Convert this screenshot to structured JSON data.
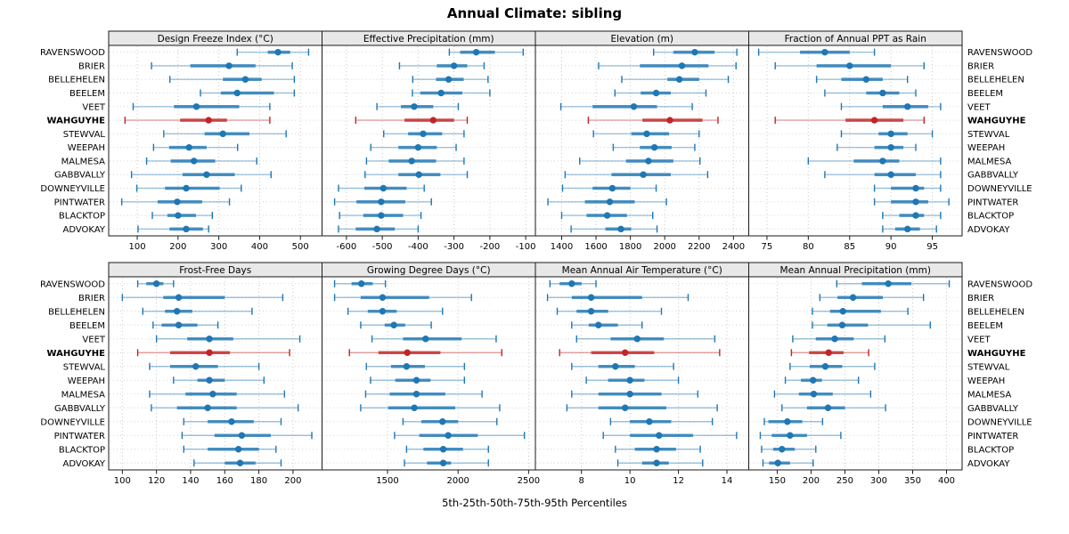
{
  "title": "Annual Climate: sibling",
  "caption": "5th-25th-50th-75th-95th Percentiles",
  "highlight_site": "WAHGUYHE",
  "colors": {
    "blue": "#1f77b4",
    "red": "#c22526",
    "strip_bg": "#e8e8e8",
    "panel_border": "#1a1a1a",
    "grid": "#c9c9c9",
    "text": "#000000"
  },
  "chart_data": {
    "type": "dot-interval",
    "percentiles": [
      5,
      25,
      50,
      75,
      95
    ],
    "grid": "dotted",
    "sites": [
      "RAVENSWOOD",
      "BRIER",
      "BELLEHELEN",
      "BEELEM",
      "VEET",
      "WAHGUYHE",
      "STEWVAL",
      "WEEPAH",
      "MALMESA",
      "GABBVALLY",
      "DOWNEYVILLE",
      "PINTWATER",
      "BLACKTOP",
      "ADVOKAY"
    ],
    "panels": [
      {
        "title": "Design Freeze Index (°C)",
        "row": 0,
        "col": 0,
        "xlim": [
          30,
          553
        ],
        "ticks": [
          100,
          200,
          300,
          400,
          500
        ],
        "values": [
          [
            345,
            420,
            445,
            475,
            520
          ],
          [
            135,
            230,
            325,
            390,
            480
          ],
          [
            180,
            310,
            365,
            405,
            485
          ],
          [
            255,
            305,
            345,
            435,
            485
          ],
          [
            90,
            190,
            245,
            350,
            425
          ],
          [
            70,
            205,
            275,
            320,
            425
          ],
          [
            165,
            265,
            310,
            375,
            465
          ],
          [
            140,
            178,
            227,
            270,
            346
          ],
          [
            123,
            182,
            239,
            291,
            393
          ],
          [
            86,
            211,
            270,
            339,
            428
          ],
          [
            99,
            168,
            220,
            302,
            355
          ],
          [
            62,
            150,
            198,
            259,
            326
          ],
          [
            137,
            174,
            200,
            244,
            284
          ],
          [
            102,
            179,
            220,
            261,
            275
          ]
        ]
      },
      {
        "title": "Effective Precipitation (mm)",
        "row": 0,
        "col": 1,
        "xlim": [
          -668,
          -73
        ],
        "ticks": [
          -600,
          -500,
          -400,
          -300,
          -200,
          -100
        ],
        "values": [
          [
            -313,
            -283,
            -238,
            -186,
            -107
          ],
          [
            -452,
            -348,
            -300,
            -263,
            -216
          ],
          [
            -415,
            -350,
            -315,
            -273,
            -205
          ],
          [
            -416,
            -394,
            -336,
            -277,
            -200
          ],
          [
            -515,
            -448,
            -411,
            -358,
            -288
          ],
          [
            -574,
            -438,
            -358,
            -300,
            -263
          ],
          [
            -496,
            -428,
            -386,
            -333,
            -272
          ],
          [
            -532,
            -455,
            -400,
            -348,
            -294
          ],
          [
            -544,
            -482,
            -418,
            -350,
            -272
          ],
          [
            -548,
            -455,
            -398,
            -338,
            -263
          ],
          [
            -622,
            -550,
            -497,
            -432,
            -383
          ],
          [
            -633,
            -572,
            -503,
            -436,
            -363
          ],
          [
            -619,
            -553,
            -503,
            -442,
            -392
          ],
          [
            -622,
            -574,
            -515,
            -465,
            -400
          ]
        ]
      },
      {
        "title": "Elevation (m)",
        "row": 0,
        "col": 2,
        "xlim": [
          1247,
          2489
        ],
        "ticks": [
          1400,
          1600,
          1800,
          2000,
          2200,
          2400
        ],
        "values": [
          [
            1935,
            2050,
            2175,
            2290,
            2420
          ],
          [
            1615,
            1855,
            2100,
            2255,
            2415
          ],
          [
            1750,
            2015,
            2085,
            2200,
            2370
          ],
          [
            1710,
            1860,
            1950,
            2035,
            2240
          ],
          [
            1395,
            1580,
            1820,
            1955,
            2160
          ],
          [
            1555,
            1870,
            2030,
            2220,
            2310
          ],
          [
            1585,
            1805,
            1895,
            2025,
            2200
          ],
          [
            1700,
            1855,
            1940,
            2040,
            2175
          ],
          [
            1505,
            1775,
            1905,
            2050,
            2205
          ],
          [
            1420,
            1690,
            1875,
            2035,
            2250
          ],
          [
            1405,
            1580,
            1695,
            1800,
            1950
          ],
          [
            1320,
            1535,
            1680,
            1825,
            2010
          ],
          [
            1400,
            1545,
            1665,
            1780,
            1930
          ],
          [
            1455,
            1655,
            1745,
            1805,
            1955
          ]
        ]
      },
      {
        "title": "Fraction of Annual PPT as Rain",
        "row": 0,
        "col": 3,
        "xlim": [
          72.8,
          98.6
        ],
        "ticks": [
          75,
          80,
          85,
          90,
          95
        ],
        "values": [
          [
            74,
            79,
            82,
            85,
            88
          ],
          [
            76,
            81,
            85,
            90,
            94
          ],
          [
            81,
            84,
            87,
            89,
            92
          ],
          [
            82,
            87,
            89,
            91,
            93
          ],
          [
            84,
            89,
            92,
            94.5,
            96
          ],
          [
            76,
            84.5,
            88,
            91.5,
            94
          ],
          [
            84,
            88.5,
            90,
            92,
            95
          ],
          [
            83.5,
            88,
            90,
            91.5,
            93
          ],
          [
            80,
            85.5,
            89,
            91,
            96
          ],
          [
            82,
            88,
            90,
            93,
            96
          ],
          [
            88,
            90,
            93,
            94,
            96
          ],
          [
            88,
            90,
            93,
            94.5,
            97
          ],
          [
            89,
            91,
            93,
            94,
            96
          ],
          [
            89,
            90.5,
            92,
            93.5,
            95.5
          ]
        ]
      },
      {
        "title": "Frost-Free Days",
        "row": 1,
        "col": 0,
        "xlim": [
          92,
          217
        ],
        "ticks": [
          100,
          120,
          140,
          160,
          180,
          200
        ],
        "values": [
          [
            109,
            114,
            120,
            124,
            130
          ],
          [
            100,
            124,
            133,
            160,
            194
          ],
          [
            112,
            125,
            132,
            141,
            176
          ],
          [
            118,
            123,
            133,
            144,
            156
          ],
          [
            120,
            138,
            151,
            165,
            204
          ],
          [
            109,
            128,
            151,
            163,
            198
          ],
          [
            116,
            128,
            143,
            156,
            180
          ],
          [
            130,
            144,
            151,
            160,
            183
          ],
          [
            116,
            137,
            153,
            167,
            195
          ],
          [
            117,
            132,
            150,
            167,
            203
          ],
          [
            136,
            150,
            164,
            177,
            193
          ],
          [
            135,
            154,
            170,
            187,
            211
          ],
          [
            136,
            150,
            168,
            180,
            190
          ],
          [
            142,
            160,
            169,
            178,
            193
          ]
        ]
      },
      {
        "title": "Growing Degree Days (°C)",
        "row": 1,
        "col": 1,
        "xlim": [
          1036,
          2548
        ],
        "ticks": [
          1500,
          2000,
          2500
        ],
        "values": [
          [
            1125,
            1245,
            1315,
            1395,
            1485
          ],
          [
            1125,
            1310,
            1465,
            1795,
            2095
          ],
          [
            1220,
            1360,
            1465,
            1565,
            1890
          ],
          [
            1310,
            1480,
            1545,
            1625,
            1810
          ],
          [
            1390,
            1610,
            1770,
            2025,
            2270
          ],
          [
            1230,
            1435,
            1640,
            1875,
            2310
          ],
          [
            1350,
            1525,
            1635,
            1765,
            2045
          ],
          [
            1380,
            1555,
            1705,
            1805,
            2045
          ],
          [
            1345,
            1515,
            1705,
            1910,
            2170
          ],
          [
            1310,
            1505,
            1690,
            1980,
            2295
          ],
          [
            1610,
            1740,
            1890,
            2000,
            2275
          ],
          [
            1550,
            1725,
            1930,
            2140,
            2470
          ],
          [
            1635,
            1755,
            1895,
            2035,
            2215
          ],
          [
            1620,
            1780,
            1895,
            1950,
            2215
          ]
        ]
      },
      {
        "title": "Mean Annual Air Temperature (°C)",
        "row": 1,
        "col": 2,
        "xlim": [
          6.1,
          14.9
        ],
        "ticks": [
          8,
          10,
          12,
          14
        ],
        "values": [
          [
            6.7,
            7.1,
            7.6,
            8.0,
            8.6
          ],
          [
            6.6,
            7.6,
            8.4,
            10.5,
            12.4
          ],
          [
            7.0,
            7.8,
            8.4,
            9.1,
            11.3
          ],
          [
            7.6,
            8.3,
            8.7,
            9.5,
            10.5
          ],
          [
            7.8,
            9.2,
            10.3,
            11.4,
            13.5
          ],
          [
            7.1,
            8.4,
            9.8,
            11.0,
            13.7
          ],
          [
            7.6,
            8.7,
            9.4,
            10.2,
            11.8
          ],
          [
            8.2,
            9.1,
            10.0,
            10.6,
            12.0
          ],
          [
            7.6,
            8.7,
            10.0,
            11.3,
            12.8
          ],
          [
            7.4,
            8.7,
            9.8,
            11.5,
            13.6
          ],
          [
            9.2,
            10.0,
            10.8,
            11.7,
            13.4
          ],
          [
            8.9,
            10.0,
            11.2,
            12.6,
            14.4
          ],
          [
            9.4,
            10.2,
            11.1,
            11.9,
            12.9
          ],
          [
            9.5,
            10.5,
            11.1,
            11.6,
            13.0
          ]
        ]
      },
      {
        "title": "Mean Annual Precipitation (mm)",
        "row": 1,
        "col": 3,
        "xlim": [
          108,
          423
        ],
        "ticks": [
          150,
          200,
          250,
          300,
          350,
          400
        ],
        "values": [
          [
            238,
            275,
            314,
            348,
            404
          ],
          [
            213,
            239,
            262,
            306,
            366
          ],
          [
            202,
            228,
            247,
            303,
            343
          ],
          [
            202,
            224,
            246,
            284,
            376
          ],
          [
            173,
            207,
            235,
            263,
            309
          ],
          [
            171,
            197,
            226,
            248,
            285
          ],
          [
            169,
            198,
            221,
            246,
            294
          ],
          [
            162,
            185,
            203,
            216,
            270
          ],
          [
            146,
            182,
            204,
            232,
            288
          ],
          [
            157,
            194,
            225,
            250,
            310
          ],
          [
            131,
            137,
            165,
            187,
            217
          ],
          [
            125,
            142,
            169,
            194,
            244
          ],
          [
            127,
            144,
            157,
            176,
            207
          ],
          [
            129,
            138,
            151,
            169,
            203
          ]
        ]
      }
    ]
  }
}
